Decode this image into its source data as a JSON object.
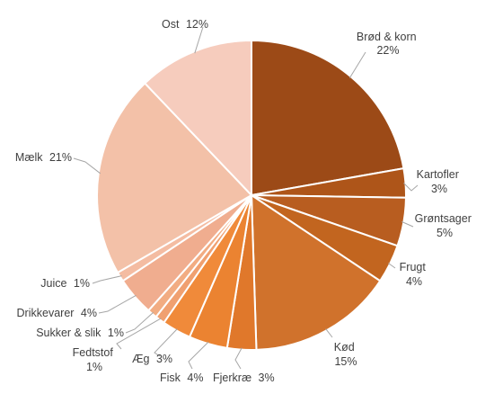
{
  "chart_data": {
    "type": "pie",
    "title": "",
    "legend": "none",
    "start_angle_deg": 0,
    "direction": "clockwise",
    "slices": [
      {
        "label": "Brød & korn",
        "value": 22,
        "value_label": "22%",
        "color": "#9c4a17"
      },
      {
        "label": "Kartofler",
        "value": 3,
        "value_label": "3%",
        "color": "#ae5519"
      },
      {
        "label": "Grøntsager",
        "value": 5,
        "value_label": "5%",
        "color": "#b85d20"
      },
      {
        "label": "Frugt",
        "value": 4,
        "value_label": "4%",
        "color": "#c2651f"
      },
      {
        "label": "Kød",
        "value": 15,
        "value_label": "15%",
        "color": "#d0722c"
      },
      {
        "label": "Fjerkræ",
        "value": 3,
        "value_label": "3%",
        "color": "#e0782b"
      },
      {
        "label": "Fisk",
        "value": 4,
        "value_label": "4%",
        "color": "#eb8331"
      },
      {
        "label": "Æg",
        "value": 3,
        "value_label": "3%",
        "color": "#f08a3a"
      },
      {
        "label": "Fedtstof",
        "value": 1,
        "value_label": "1%",
        "color": "#f0a070"
      },
      {
        "label": "Sukker & slik",
        "value": 1,
        "value_label": "1%",
        "color": "#f2ac82"
      },
      {
        "label": "Drikkevarer",
        "value": 4,
        "value_label": "4%",
        "color": "#f0ad8f"
      },
      {
        "label": "Juice",
        "value": 1,
        "value_label": "1%",
        "color": "#f4bca2"
      },
      {
        "label": "Mælk",
        "value": 21,
        "value_label": "21%",
        "color": "#f3c1a8"
      },
      {
        "label": "Ost",
        "value": 12,
        "value_label": "12%",
        "color": "#f6ccbd"
      }
    ]
  }
}
